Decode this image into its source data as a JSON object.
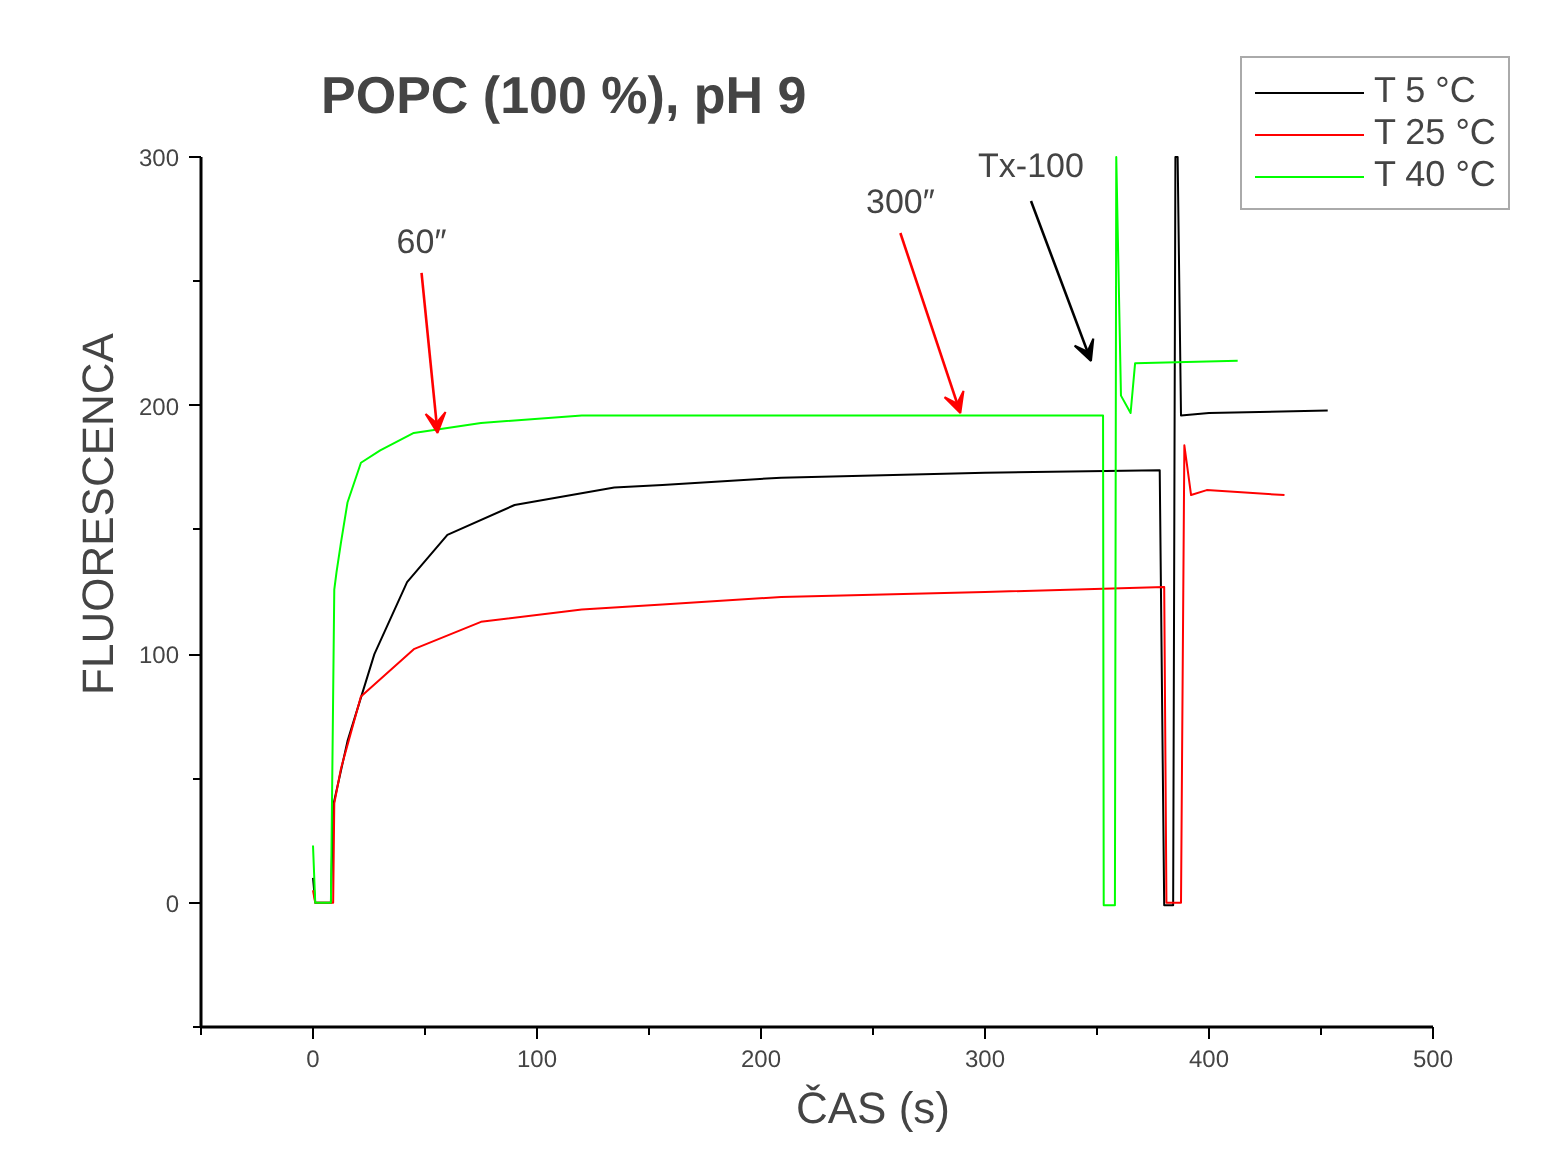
{
  "chart_data": {
    "type": "line",
    "title": "POPC (100 %), pH 9",
    "xlabel": "ČAS (s)",
    "ylabel": "FLUORESCENCA",
    "xlim": [
      -50,
      500
    ],
    "ylim": [
      -50,
      300
    ],
    "xticks": [
      {
        "value": -50,
        "label": null
      },
      0,
      {
        "value": 50,
        "label": null
      },
      100,
      {
        "value": 150,
        "label": null
      },
      200,
      {
        "value": 250,
        "label": null
      },
      300,
      {
        "value": 350,
        "label": null
      },
      400,
      {
        "value": 450,
        "label": null
      },
      500
    ],
    "yticks": [
      {
        "value": -50,
        "label": null
      },
      0,
      {
        "value": 50,
        "label": null
      },
      100,
      {
        "value": 150,
        "label": null
      },
      200,
      {
        "value": 250,
        "label": null
      },
      300
    ],
    "grid": false,
    "legend": "top right",
    "marker": "none",
    "line_style": "solid",
    "series": [
      {
        "name": "T 5 °C",
        "color": "#000000",
        "x": [
          0,
          1,
          8,
          9,
          15.4,
          27.4,
          42,
          60,
          90,
          134.5,
          156,
          209,
          300,
          378,
          380,
          384,
          385,
          386,
          387.5,
          400,
          453
        ],
        "values": [
          10,
          0,
          0,
          39,
          65,
          100,
          129,
          148,
          160,
          167,
          168,
          171,
          173,
          174,
          -1,
          -1,
          300,
          300,
          196,
          197,
          198
        ]
      },
      {
        "name": "T 25 °C",
        "color": "#ff0000",
        "x": [
          0,
          1,
          9,
          9.5,
          12.5,
          21.4,
          45,
          75,
          120,
          156,
          209,
          300,
          380,
          381,
          387.5,
          389,
          392,
          399,
          433.7
        ],
        "values": [
          5,
          0,
          0,
          40,
          54,
          83,
          102,
          113,
          118,
          120,
          123,
          125,
          127,
          0,
          0,
          184,
          164,
          166,
          164
        ]
      },
      {
        "name": "T 40 °C",
        "color": "#00ff00",
        "x": [
          0,
          1,
          8,
          9.5,
          10.5,
          12.5,
          15.4,
          21.4,
          30,
          45,
          75,
          120,
          209,
          300,
          352.7,
          353,
          358,
          358.6,
          360.7,
          365,
          367,
          412.8
        ],
        "values": [
          23,
          0,
          0,
          126,
          133,
          145,
          161,
          177,
          182,
          189,
          193,
          196,
          196,
          196,
          196,
          -1,
          -1,
          300,
          204,
          197,
          217,
          218
        ]
      }
    ],
    "annotations": [
      {
        "text": "60″",
        "x": 55.6,
        "y": 189
      },
      {
        "text": "300″",
        "x": 289,
        "y": 197
      },
      "Tx-100"
    ]
  }
}
